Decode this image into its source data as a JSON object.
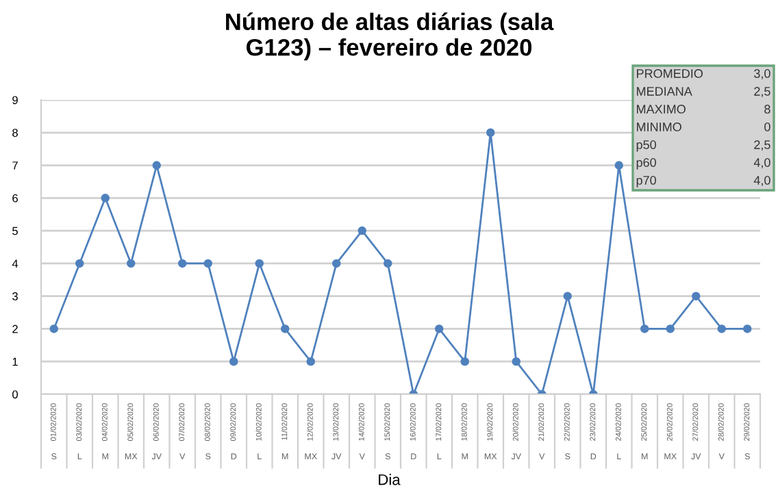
{
  "chart_data": {
    "type": "line",
    "title": "Número de altas diárias (sala\nG123) – fevereiro de 2020",
    "xlabel": "Dia",
    "categories": [
      "01/02/2020\nS",
      "03/02/2020\nL",
      "04/02/2020\nM",
      "05/02/2020\nMX",
      "06/02/2020\nJV",
      "07/02/2020\nV",
      "08/02/2020\nS",
      "09/02/2020\nD",
      "10/02/2020\nL",
      "11/02/2020\nM",
      "12/02/2020\nMX",
      "13/02/2020\nJV",
      "14/02/2020\nV",
      "15/02/2020\nS",
      "16/02/2020\nD",
      "17/02/2020\nL",
      "18/02/2020\nM",
      "19/02/2020\nMX",
      "20/02/2020\nJV",
      "21/02/2020\nV",
      "22/02/2020\nS",
      "23/02/2020\nD",
      "24/02/2020\nL",
      "25/02/2020\nM",
      "26/02/2020\nMX",
      "27/02/2020\nJV",
      "28/02/2020\nV",
      "29/02/2020\nS"
    ],
    "series": [
      {
        "color": "#4f81bd",
        "values": [
          2,
          4,
          6,
          4,
          7,
          4,
          4,
          1,
          4,
          2,
          1,
          4,
          5,
          4,
          0,
          2,
          1,
          8,
          1,
          0,
          3,
          0,
          7,
          2,
          2,
          3,
          2,
          2
        ]
      }
    ],
    "ylim": [
      0,
      9
    ],
    "yticks": [
      0,
      1,
      2,
      3,
      4,
      5,
      6,
      7,
      8,
      9
    ],
    "grid": "y",
    "marker": "circle",
    "line_style": "solid",
    "annotations": [
      "PROMEDIO\t3,0",
      "MEDIANA\t2,5",
      "MAXIMO\t8",
      "MINIMO\t0",
      "p50\t2,5",
      "p60\t4,0",
      "p70\t4,0"
    ]
  }
}
